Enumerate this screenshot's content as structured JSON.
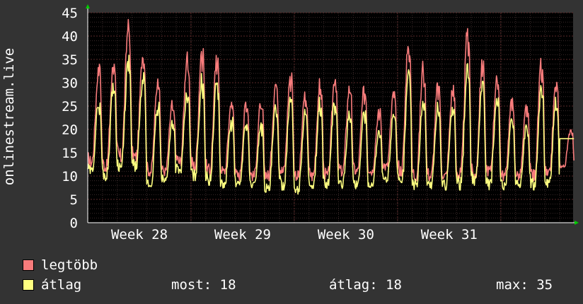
{
  "chart_data": {
    "type": "line",
    "ylabel": "onlinestream.live",
    "ylim": [
      0,
      45
    ],
    "yticks": [
      0,
      5,
      10,
      15,
      20,
      25,
      30,
      35,
      40,
      45
    ],
    "x_labels": [
      "Week 28",
      "Week 29",
      "Week 30",
      "Week 31"
    ],
    "x_weeks": [
      28,
      29,
      30,
      31
    ],
    "x_range_weeks": [
      27.5,
      32.2
    ],
    "days": 33,
    "grid": true,
    "series": [
      {
        "name": "legtöbb",
        "color": "#f87c7c",
        "daily_peak_max": [
          33,
          34,
          42,
          36,
          30,
          26,
          36,
          38,
          35,
          26,
          26,
          26,
          30,
          32,
          28,
          30,
          31,
          29,
          29,
          24,
          28,
          40,
          34,
          30,
          29,
          41,
          34,
          32,
          26,
          25,
          34,
          30,
          20
        ],
        "daily_min_max": [
          13,
          12,
          14,
          14,
          11,
          11,
          13,
          12,
          11,
          11,
          10,
          10,
          10,
          11,
          10,
          10,
          10,
          11,
          11,
          11,
          12,
          11,
          10,
          10,
          10,
          10,
          10,
          11,
          10,
          10,
          10,
          10,
          12
        ]
      },
      {
        "name": "átlag",
        "color": "#ffff80",
        "daily_peak": [
          26,
          30,
          35,
          31,
          25,
          22,
          28,
          31,
          30,
          22,
          22,
          21,
          25,
          27,
          24,
          26,
          27,
          24,
          24,
          20,
          24,
          32,
          27,
          25,
          25,
          34,
          30,
          27,
          22,
          21,
          29,
          26,
          18
        ],
        "daily_min": [
          11,
          10,
          12,
          12,
          8,
          9,
          11,
          10,
          9,
          8,
          8,
          8,
          7,
          8,
          7,
          7,
          8,
          8,
          8,
          8,
          9,
          8,
          8,
          8,
          8,
          8,
          9,
          8,
          8,
          8,
          8,
          8,
          18
        ]
      }
    ]
  },
  "legend": {
    "items": [
      {
        "name": "legtöbb",
        "color": "#f87c7c"
      },
      {
        "name": "átlag",
        "color": "#ffff80"
      }
    ],
    "stats": {
      "now_label": "most: 18",
      "avg_label": "átlag: 18",
      "max_label": "max: 35"
    }
  }
}
